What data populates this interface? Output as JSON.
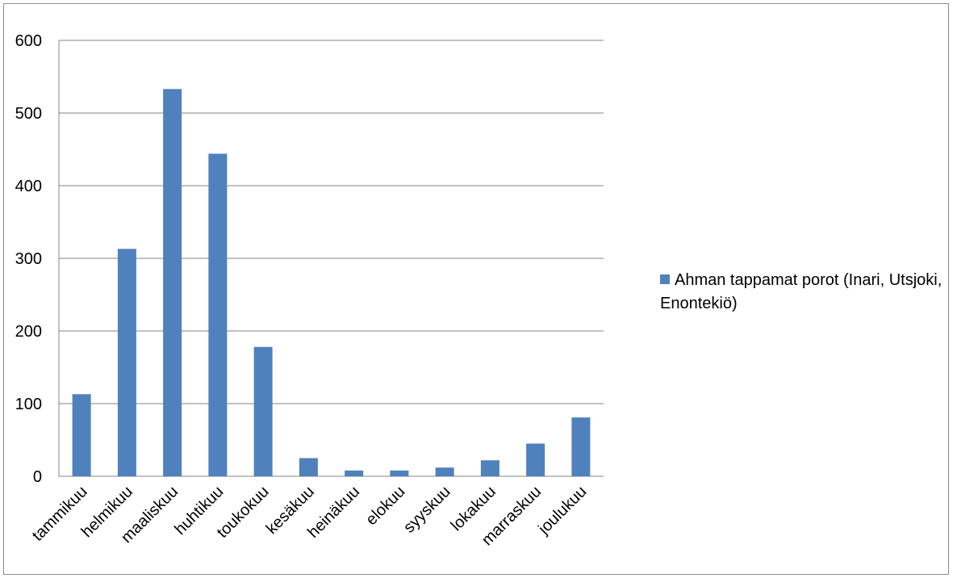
{
  "chart_data": {
    "type": "bar",
    "categories": [
      "tammikuu",
      "helmikuu",
      "maaliskuu",
      "huhtikuu",
      "toukokuu",
      "kesäkuu",
      "heinäkuu",
      "elokuu",
      "syyskuu",
      "lokakuu",
      "marraskuu",
      "joulukuu"
    ],
    "series": [
      {
        "name": "Ahman tappamat porot (Inari, Utsjoki, Enontekiö)",
        "values": [
          113,
          313,
          533,
          444,
          178,
          25,
          8,
          8,
          12,
          22,
          45,
          81
        ],
        "color": "#4f81bd"
      }
    ],
    "yticks": [
      "0",
      "100",
      "200",
      "300",
      "400",
      "500",
      "600"
    ],
    "ylim": [
      0,
      600
    ],
    "grid": true,
    "legend_position": "right"
  }
}
